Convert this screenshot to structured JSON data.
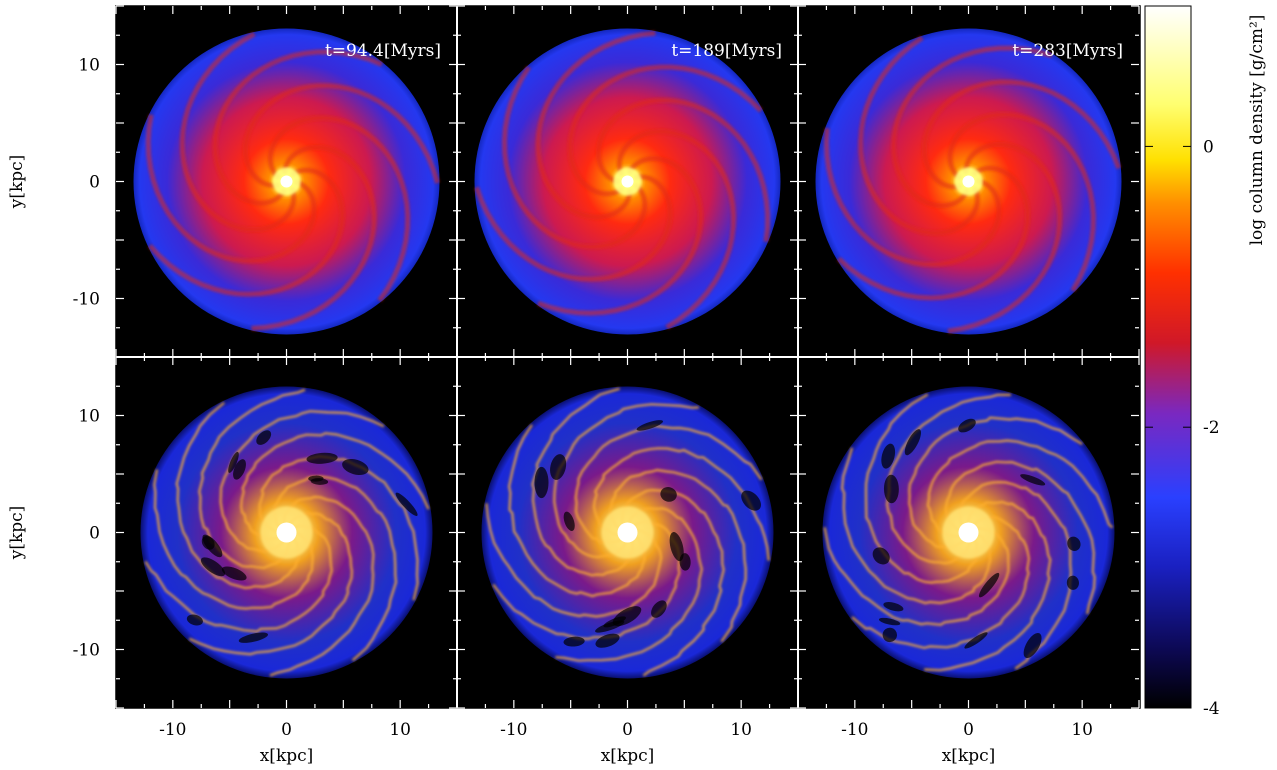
{
  "figure": {
    "x_axis_title": "x[kpc]",
    "y_axis_title": "y[kpc]",
    "x_ticks": [
      "-10",
      "0",
      "10"
    ],
    "y_ticks": [
      "10",
      "0",
      "-10"
    ],
    "x_tick_values": [
      -10,
      0,
      10
    ],
    "y_tick_values": [
      10,
      0,
      -10
    ],
    "axis_range": [
      -15,
      15
    ],
    "colorbar": {
      "label": "log column density [g/cm²]",
      "ticks": [
        "0",
        "-2",
        "-4"
      ],
      "tick_values": [
        0,
        -2,
        -4
      ],
      "range": [
        -4,
        1
      ],
      "colors": [
        "#000000",
        "#1a10a0",
        "#2a3aff",
        "#8a28b8",
        "#d01818",
        "#ff5000",
        "#ffd000",
        "#ffff50",
        "#ffffff"
      ]
    },
    "rows": [
      {
        "row": "top",
        "panels": [
          {
            "time": "t=94.4[Myrs]"
          },
          {
            "time": "t=189[Myrs]"
          },
          {
            "time": "t=283[Myrs]"
          }
        ]
      },
      {
        "row": "bottom",
        "panels": [
          {
            "time": ""
          },
          {
            "time": ""
          },
          {
            "time": ""
          }
        ]
      }
    ]
  }
}
